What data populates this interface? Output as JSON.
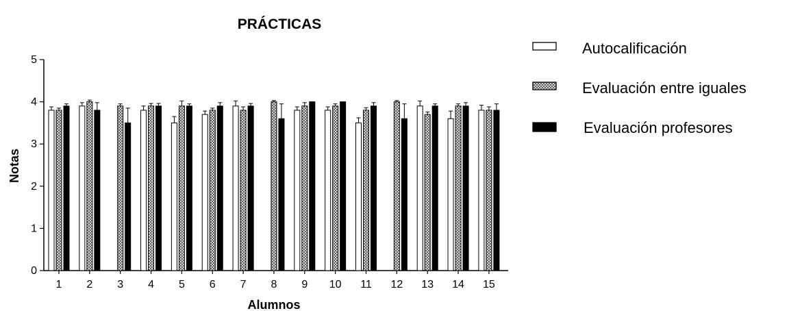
{
  "chart_data": {
    "type": "bar",
    "title": "PRÁCTICAS",
    "xlabel": "Alumnos",
    "ylabel": "Notas",
    "ylim": [
      0,
      5
    ],
    "yticks": [
      0,
      1,
      2,
      3,
      4,
      5
    ],
    "grid": false,
    "legend_position": "right",
    "categories": [
      "1",
      "2",
      "3",
      "4",
      "5",
      "6",
      "7",
      "8",
      "9",
      "10",
      "11",
      "12",
      "13",
      "14",
      "15"
    ],
    "series": [
      {
        "name": "Autocalificación",
        "pattern": "white",
        "values": [
          3.8,
          3.9,
          0,
          3.8,
          3.5,
          3.7,
          3.9,
          0,
          3.8,
          3.8,
          3.5,
          0,
          3.9,
          3.6,
          3.8
        ],
        "errors": [
          0.08,
          0.08,
          0,
          0.1,
          0.15,
          0.08,
          0.12,
          0,
          0.08,
          0.08,
          0.12,
          0,
          0.12,
          0.18,
          0.12
        ]
      },
      {
        "name": "Evaluación entre iguales",
        "pattern": "crosshatch",
        "values": [
          3.8,
          4.0,
          3.9,
          3.9,
          3.9,
          3.8,
          3.8,
          4.0,
          3.9,
          3.9,
          3.8,
          4.0,
          3.7,
          3.9,
          3.8
        ],
        "errors": [
          0.05,
          0.04,
          0.05,
          0.06,
          0.12,
          0.05,
          0.08,
          0.03,
          0.08,
          0.05,
          0.06,
          0.03,
          0.06,
          0.05,
          0.08
        ]
      },
      {
        "name": "Evaluación profesores",
        "pattern": "black",
        "values": [
          3.9,
          3.8,
          3.5,
          3.9,
          3.9,
          3.9,
          3.9,
          3.6,
          4.0,
          4.0,
          3.9,
          3.6,
          3.9,
          3.9,
          3.8
        ],
        "errors": [
          0.05,
          0.18,
          0.35,
          0.06,
          0.05,
          0.08,
          0.06,
          0.35,
          0.0,
          0.0,
          0.08,
          0.35,
          0.05,
          0.08,
          0.15
        ]
      }
    ]
  },
  "colors": {
    "black": "#000000",
    "white": "#ffffff",
    "crosshatch": "#9a9a9a"
  },
  "legend_icons": [
    "open-bar-icon",
    "crosshatch-bar-icon",
    "solid-bar-icon"
  ]
}
